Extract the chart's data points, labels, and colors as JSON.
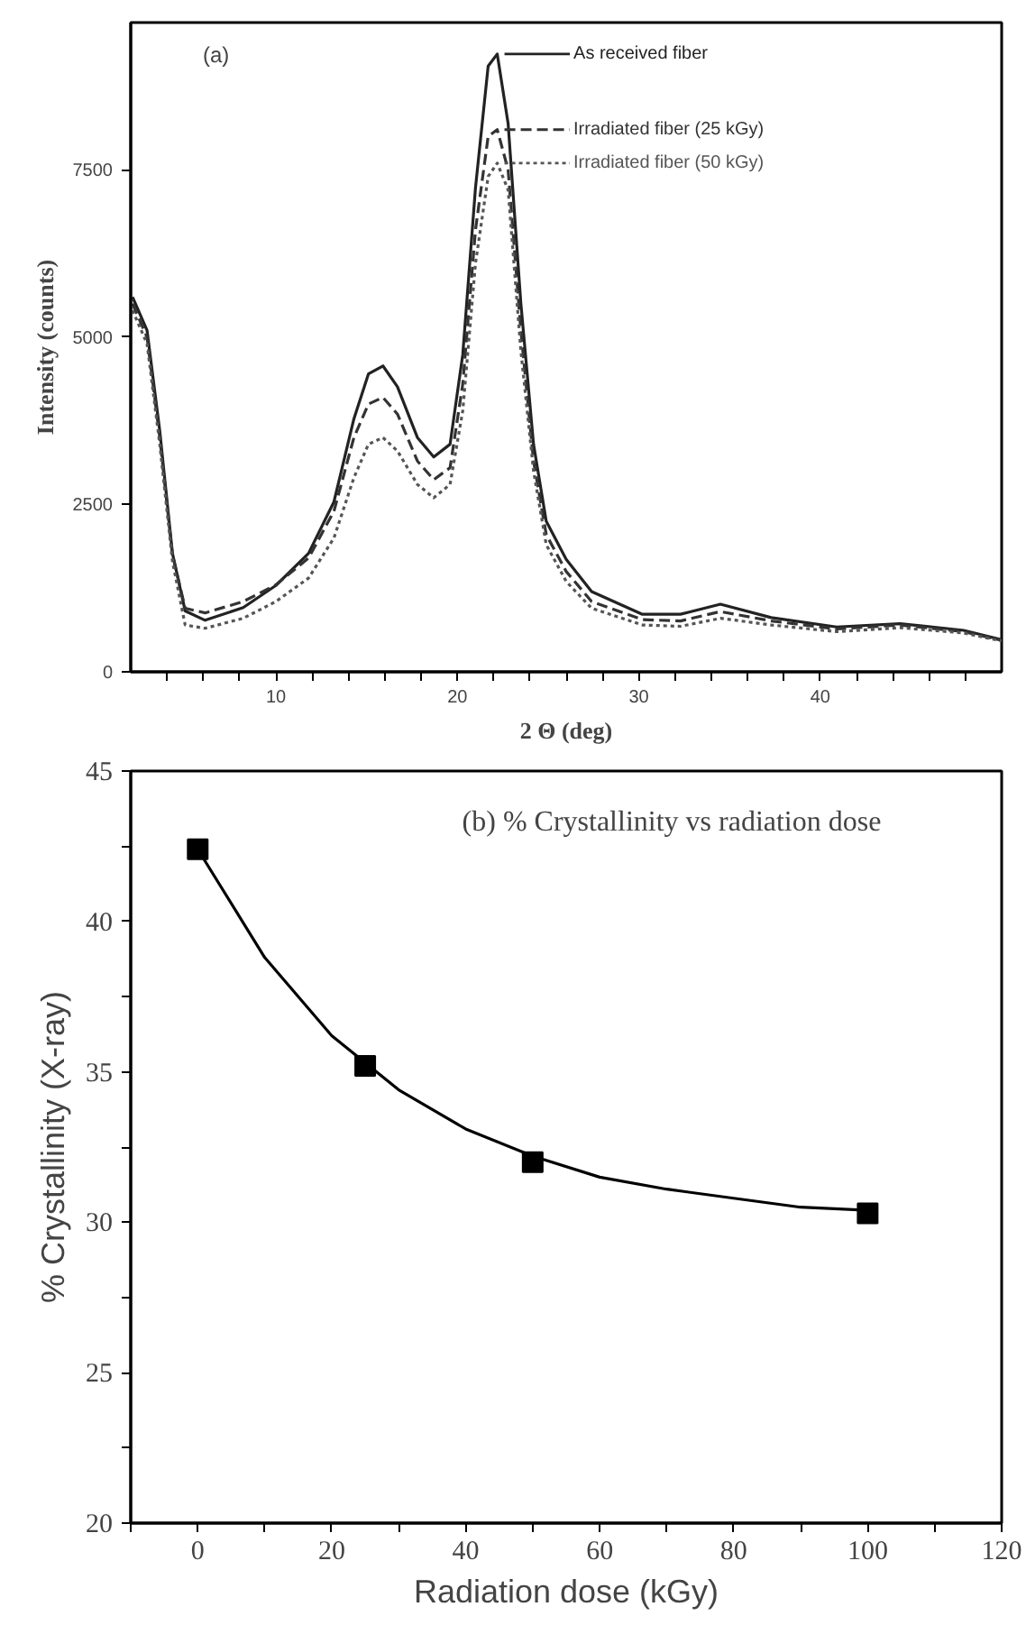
{
  "chart_data": [
    {
      "type": "line",
      "xlabel": "2 Θ (deg)",
      "ylabel": "Intensity (counts)",
      "annotations": [
        "(a)"
      ],
      "xlim": [
        2,
        50
      ],
      "ylim": [
        0,
        9700
      ],
      "xticks": [
        {
          "value": 4,
          "label": null
        },
        {
          "value": 6,
          "label": null
        },
        {
          "value": 8,
          "label": null
        },
        10,
        {
          "value": 12,
          "label": null
        },
        {
          "value": 14,
          "label": null
        },
        {
          "value": 16,
          "label": null
        },
        {
          "value": 18,
          "label": null
        },
        20,
        {
          "value": 22,
          "label": null
        },
        {
          "value": 24,
          "label": null
        },
        {
          "value": 26,
          "label": null
        },
        {
          "value": 28,
          "label": null
        },
        30,
        {
          "value": 32,
          "label": null
        },
        {
          "value": 34,
          "label": null
        },
        {
          "value": 36,
          "label": null
        },
        {
          "value": 38,
          "label": null
        },
        40,
        {
          "value": 42,
          "label": null
        },
        {
          "value": 44,
          "label": null
        },
        {
          "value": 46,
          "label": null
        },
        {
          "value": 48,
          "label": null
        }
      ],
      "yticks": [
        0,
        2500,
        5000,
        7500
      ],
      "grid": false,
      "legend": "top right",
      "x": [
        2.1,
        2.9,
        3.6,
        4.3,
        5.0,
        6.1,
        8.2,
        10,
        11.8,
        13.2,
        14.3,
        15.1,
        15.9,
        16.7,
        17.8,
        18.7,
        19.6,
        20.3,
        21.0,
        21.7,
        22.2,
        22.8,
        23.5,
        24.2,
        24.9,
        26.0,
        27.4,
        30.2,
        32.3,
        34.5,
        37.3,
        40.9,
        44.4,
        47.9,
        50
      ],
      "series": [
        {
          "name": "As received fiber",
          "color": "#222222",
          "line_style": "solid",
          "values": [
            5600,
            5100,
            3600,
            1770,
            910,
            770,
            960,
            1290,
            1770,
            2540,
            3780,
            4450,
            4570,
            4260,
            3500,
            3210,
            3400,
            4740,
            7230,
            9050,
            9230,
            8190,
            5510,
            3400,
            2250,
            1680,
            1200,
            860,
            860,
            1010,
            810,
            670,
            720,
            620,
            480
          ]
        },
        {
          "name": "Irradiated fiber (25 kGy)",
          "color": "#333333",
          "line_style": "dashed",
          "values": [
            5500,
            5000,
            3500,
            1750,
            950,
            880,
            1050,
            1300,
            1700,
            2400,
            3500,
            4000,
            4100,
            3850,
            3150,
            2870,
            3050,
            4300,
            6600,
            8000,
            8100,
            7500,
            5100,
            3150,
            2050,
            1500,
            1050,
            780,
            760,
            900,
            760,
            640,
            700,
            600,
            470
          ]
        },
        {
          "name": "Irradiated fiber (50 kGy)",
          "color": "#555555",
          "line_style": "dotted",
          "values": [
            5400,
            4900,
            3400,
            1650,
            700,
            650,
            800,
            1050,
            1400,
            2000,
            2900,
            3400,
            3500,
            3300,
            2800,
            2600,
            2800,
            3900,
            6100,
            7400,
            7600,
            7200,
            4800,
            3000,
            1900,
            1350,
            950,
            700,
            680,
            800,
            700,
            600,
            660,
            580,
            460
          ]
        }
      ]
    },
    {
      "type": "scatter",
      "xlabel": "Radiation dose (kGy)",
      "ylabel": "% Crystallinity (X-ray)",
      "annotations": [
        "(b) % Crystallinity vs radiation dose"
      ],
      "xlim": [
        -10,
        120
      ],
      "ylim": [
        20,
        45
      ],
      "xticks": [
        {
          "value": -10,
          "label": null
        },
        0,
        {
          "value": 10,
          "label": null
        },
        20,
        {
          "value": 30,
          "label": null
        },
        40,
        {
          "value": 50,
          "label": null
        },
        60,
        {
          "value": 70,
          "label": null
        },
        80,
        {
          "value": 90,
          "label": null
        },
        100,
        {
          "value": 110,
          "label": null
        },
        120
      ],
      "yticks": [
        20,
        {
          "value": 22.5,
          "label": null
        },
        25,
        {
          "value": 27.5,
          "label": null
        },
        30,
        {
          "value": 32.5,
          "label": null
        },
        35,
        {
          "value": 37.5,
          "label": null
        },
        40,
        {
          "value": 42.5,
          "label": null
        },
        45
      ],
      "grid": false,
      "marker": "square",
      "x": [
        0,
        25,
        50,
        100
      ],
      "series": [
        {
          "color": "#000000",
          "values": [
            42.4,
            35.2,
            32.0,
            30.3
          ]
        },
        {
          "type": "line",
          "color": "#000000",
          "line_style": "solid",
          "marker": "none",
          "x": [
            0,
            10,
            20,
            30,
            40,
            50,
            60,
            70,
            80,
            90,
            100
          ],
          "values": [
            42.4,
            38.8,
            36.2,
            34.4,
            33.1,
            32.2,
            31.5,
            31.1,
            30.8,
            30.5,
            30.4
          ]
        }
      ]
    }
  ]
}
